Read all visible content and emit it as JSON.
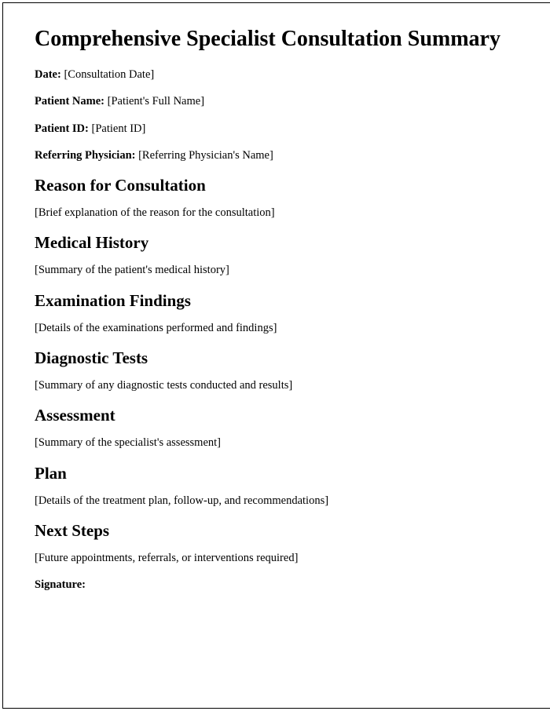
{
  "title": "Comprehensive Specialist Consultation Summary",
  "header_fields": {
    "date": {
      "label": "Date:",
      "value": "[Consultation Date]"
    },
    "patient_name": {
      "label": "Patient Name:",
      "value": "[Patient's Full Name]"
    },
    "patient_id": {
      "label": "Patient ID:",
      "value": "[Patient ID]"
    },
    "referring_physician": {
      "label": "Referring Physician:",
      "value": "[Referring Physician's Name]"
    }
  },
  "sections": {
    "reason": {
      "heading": "Reason for Consultation",
      "body": "[Brief explanation of the reason for the consultation]"
    },
    "history": {
      "heading": "Medical History",
      "body": "[Summary of the patient's medical history]"
    },
    "examination": {
      "heading": "Examination Findings",
      "body": "[Details of the examinations performed and findings]"
    },
    "diagnostics": {
      "heading": "Diagnostic Tests",
      "body": "[Summary of any diagnostic tests conducted and results]"
    },
    "assessment": {
      "heading": "Assessment",
      "body": "[Summary of the specialist's assessment]"
    },
    "plan": {
      "heading": "Plan",
      "body": "[Details of the treatment plan, follow-up, and recommendations]"
    },
    "next_steps": {
      "heading": "Next Steps",
      "body": "[Future appointments, referrals, or interventions required]"
    }
  },
  "signature_label": "Signature:"
}
